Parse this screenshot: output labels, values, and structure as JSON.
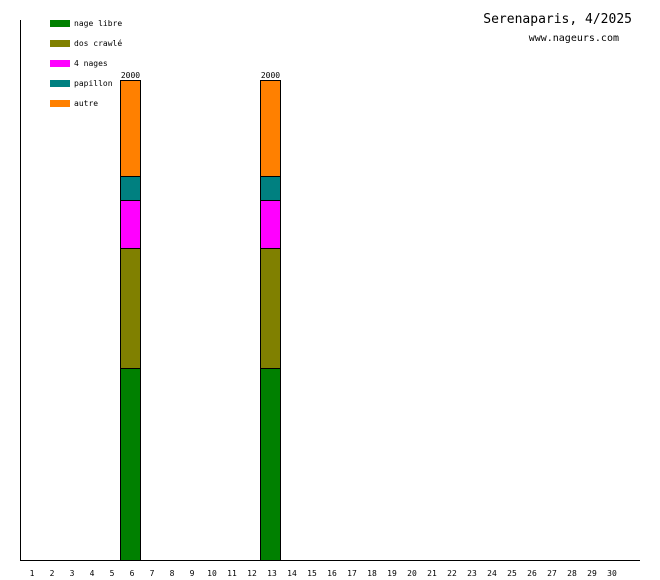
{
  "chart_data": {
    "type": "bar",
    "stacked": true,
    "title": "Serenaparis, 4/2025",
    "subtitle": "www.nageurs.com",
    "categories": [
      "1",
      "2",
      "3",
      "4",
      "5",
      "6",
      "7",
      "8",
      "9",
      "10",
      "11",
      "12",
      "13",
      "14",
      "15",
      "16",
      "17",
      "18",
      "19",
      "20",
      "21",
      "22",
      "23",
      "24",
      "25",
      "26",
      "27",
      "28",
      "29",
      "30"
    ],
    "ylim": [
      0,
      2000
    ],
    "grid": false,
    "legend_position": "top-left",
    "series": [
      {
        "name": "nage libre",
        "color": "#008000",
        "values": [
          0,
          0,
          0,
          0,
          0,
          800,
          0,
          0,
          0,
          0,
          0,
          0,
          800,
          0,
          0,
          0,
          0,
          0,
          0,
          0,
          0,
          0,
          0,
          0,
          0,
          0,
          0,
          0,
          0,
          0
        ]
      },
      {
        "name": "dos crawlé",
        "color": "#808000",
        "values": [
          0,
          0,
          0,
          0,
          0,
          500,
          0,
          0,
          0,
          0,
          0,
          0,
          500,
          0,
          0,
          0,
          0,
          0,
          0,
          0,
          0,
          0,
          0,
          0,
          0,
          0,
          0,
          0,
          0,
          0
        ]
      },
      {
        "name": "4 nages",
        "color": "#ff00ff",
        "values": [
          0,
          0,
          0,
          0,
          0,
          200,
          0,
          0,
          0,
          0,
          0,
          0,
          200,
          0,
          0,
          0,
          0,
          0,
          0,
          0,
          0,
          0,
          0,
          0,
          0,
          0,
          0,
          0,
          0,
          0
        ]
      },
      {
        "name": "papillon",
        "color": "#008080",
        "values": [
          0,
          0,
          0,
          0,
          0,
          100,
          0,
          0,
          0,
          0,
          0,
          0,
          100,
          0,
          0,
          0,
          0,
          0,
          0,
          0,
          0,
          0,
          0,
          0,
          0,
          0,
          0,
          0,
          0,
          0
        ]
      },
      {
        "name": "autre",
        "color": "#ff8000",
        "values": [
          0,
          0,
          0,
          0,
          0,
          400,
          0,
          0,
          0,
          0,
          0,
          0,
          400,
          0,
          0,
          0,
          0,
          0,
          0,
          0,
          0,
          0,
          0,
          0,
          0,
          0,
          0,
          0,
          0,
          0
        ]
      }
    ],
    "data_labels": [
      "",
      "",
      "",
      "",
      "",
      "2000",
      "",
      "",
      "",
      "",
      "",
      "",
      "2000",
      "",
      "",
      "",
      "",
      "",
      "",
      "",
      "",
      "",
      "",
      "",
      "",
      "",
      "",
      "",
      "",
      ""
    ]
  }
}
